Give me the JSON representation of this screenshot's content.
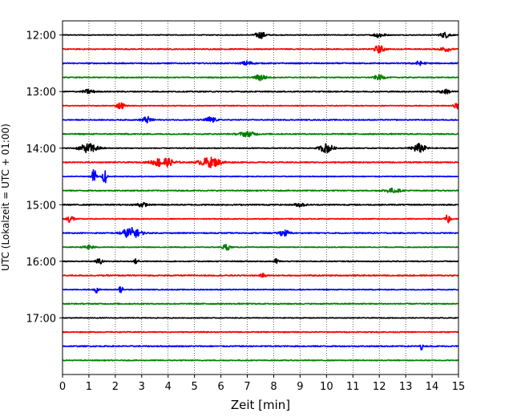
{
  "chart_data": {
    "type": "line",
    "title": "",
    "xlabel": "Zeit  [min]",
    "ylabel": "UTC (Lokalzeit = UTC + 01:00)",
    "xlim": [
      0,
      15
    ],
    "ylim": [
      18,
      11.75
    ],
    "x_ticks": [
      0,
      1,
      2,
      3,
      4,
      5,
      6,
      7,
      8,
      9,
      10,
      11,
      12,
      13,
      14,
      15
    ],
    "x_tick_labels": [
      "0",
      "1",
      "2",
      "3",
      "4",
      "5",
      "6",
      "7",
      "8",
      "9",
      "10",
      "11",
      "12",
      "13",
      "14",
      "15"
    ],
    "y_ticks": [
      12,
      13,
      14,
      15,
      16,
      17
    ],
    "y_tick_labels": [
      "12:00",
      "13:00",
      "14:00",
      "15:00",
      "16:00",
      "17:00"
    ],
    "grid": "vertical-dotted",
    "trace_interval_min": 15,
    "series_colors": [
      "#000000",
      "#ff0000",
      "#0000ff",
      "#008000"
    ],
    "traces": [
      {
        "start": "12:00",
        "color": "#000000",
        "events": [
          [
            7.5,
            0.55,
            0.2
          ],
          [
            12.0,
            0.45,
            0.2
          ],
          [
            14.5,
            0.45,
            0.2
          ]
        ]
      },
      {
        "start": "12:15",
        "color": "#ff0000",
        "events": [
          [
            12.0,
            0.6,
            0.2
          ],
          [
            14.5,
            0.4,
            0.2
          ]
        ]
      },
      {
        "start": "12:30",
        "color": "#0000ff",
        "events": [
          [
            7.0,
            0.35,
            0.2
          ],
          [
            13.5,
            0.3,
            0.2
          ]
        ]
      },
      {
        "start": "12:45",
        "color": "#008000",
        "events": [
          [
            7.5,
            0.55,
            0.2
          ],
          [
            12.0,
            0.4,
            0.2
          ]
        ]
      },
      {
        "start": "13:00",
        "color": "#000000",
        "events": [
          [
            1.0,
            0.35,
            0.2
          ],
          [
            14.5,
            0.35,
            0.2
          ]
        ]
      },
      {
        "start": "13:15",
        "color": "#ff0000",
        "events": [
          [
            2.2,
            0.55,
            0.15
          ],
          [
            15.0,
            0.6,
            0.15
          ]
        ]
      },
      {
        "start": "13:30",
        "color": "#0000ff",
        "events": [
          [
            3.2,
            0.5,
            0.2
          ],
          [
            5.6,
            0.5,
            0.2
          ]
        ]
      },
      {
        "start": "13:45",
        "color": "#008000",
        "events": [
          [
            7.0,
            0.4,
            0.3
          ]
        ]
      },
      {
        "start": "14:00",
        "color": "#000000",
        "events": [
          [
            1.0,
            0.75,
            0.35
          ],
          [
            10.0,
            0.75,
            0.25
          ],
          [
            13.5,
            0.75,
            0.25
          ]
        ]
      },
      {
        "start": "14:15",
        "color": "#ff0000",
        "events": [
          [
            3.8,
            0.8,
            0.4
          ],
          [
            5.6,
            0.8,
            0.4
          ]
        ]
      },
      {
        "start": "14:30",
        "color": "#0000ff",
        "events": [
          [
            1.2,
            1.4,
            0.08
          ],
          [
            1.6,
            1.2,
            0.08
          ]
        ]
      },
      {
        "start": "14:45",
        "color": "#008000",
        "events": [
          [
            12.5,
            0.35,
            0.3
          ]
        ]
      },
      {
        "start": "15:00",
        "color": "#000000",
        "events": [
          [
            3.0,
            0.35,
            0.2
          ],
          [
            9.0,
            0.3,
            0.2
          ]
        ]
      },
      {
        "start": "15:15",
        "color": "#ff0000",
        "events": [
          [
            0.3,
            0.6,
            0.15
          ],
          [
            14.6,
            0.7,
            0.1
          ]
        ]
      },
      {
        "start": "15:30",
        "color": "#0000ff",
        "events": [
          [
            2.6,
            0.85,
            0.35
          ],
          [
            8.4,
            0.5,
            0.2
          ]
        ]
      },
      {
        "start": "15:45",
        "color": "#008000",
        "events": [
          [
            6.2,
            0.5,
            0.15
          ],
          [
            1.0,
            0.35,
            0.2
          ]
        ]
      },
      {
        "start": "16:00",
        "color": "#000000",
        "events": [
          [
            1.4,
            0.5,
            0.12
          ],
          [
            2.8,
            0.4,
            0.1
          ],
          [
            8.1,
            0.4,
            0.1
          ]
        ]
      },
      {
        "start": "16:15",
        "color": "#ff0000",
        "events": [
          [
            7.6,
            0.3,
            0.1
          ]
        ]
      },
      {
        "start": "16:30",
        "color": "#0000ff",
        "events": [
          [
            1.3,
            0.5,
            0.08
          ],
          [
            2.2,
            0.6,
            0.08
          ]
        ]
      },
      {
        "start": "16:45",
        "color": "#008000",
        "events": []
      },
      {
        "start": "17:00",
        "color": "#000000",
        "events": []
      },
      {
        "start": "17:15",
        "color": "#ff0000",
        "events": []
      },
      {
        "start": "17:30",
        "color": "#0000ff",
        "events": [
          [
            13.6,
            0.6,
            0.04
          ]
        ]
      },
      {
        "start": "17:45",
        "color": "#008000",
        "events": []
      }
    ]
  }
}
